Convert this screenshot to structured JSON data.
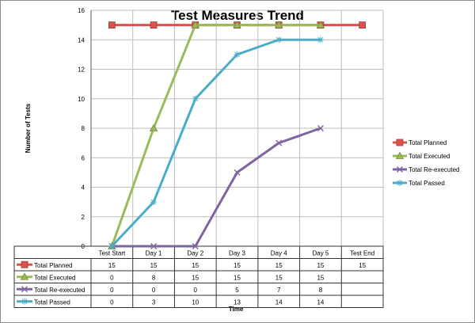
{
  "chart_data": {
    "type": "line",
    "title": "Test Measures Trend",
    "xlabel": "Time",
    "ylabel": "Number of Tests",
    "ylim": [
      0,
      16
    ],
    "yticks": [
      0,
      2,
      4,
      6,
      8,
      10,
      12,
      14,
      16
    ],
    "grid": true,
    "legend_position": "right",
    "categories": [
      "Test Start",
      "Day 1",
      "Day 2",
      "Day 3",
      "Day 4",
      "Day 5",
      "Test End"
    ],
    "series": [
      {
        "name": "Total Planned",
        "color": "#d9534f",
        "marker": "square",
        "values": [
          15,
          15,
          15,
          15,
          15,
          15,
          15
        ]
      },
      {
        "name": "Total Executed",
        "color": "#9bbb59",
        "marker": "triangle",
        "values": [
          0,
          8,
          15,
          15,
          15,
          15,
          null
        ]
      },
      {
        "name": "Total Re-executed",
        "color": "#8064a2",
        "marker": "x",
        "values": [
          0,
          0,
          0,
          5,
          7,
          8,
          null
        ]
      },
      {
        "name": "Total Passed",
        "color": "#4bacc6",
        "marker": "star",
        "values": [
          0,
          3,
          10,
          13,
          14,
          14,
          null
        ]
      }
    ]
  }
}
